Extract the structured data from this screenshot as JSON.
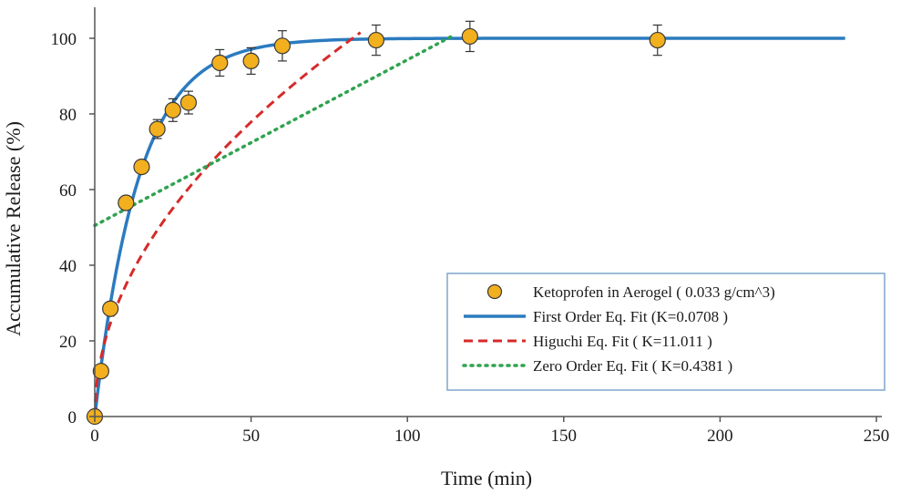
{
  "chart_data": {
    "type": "scatter",
    "xlabel": "Time (min)",
    "ylabel": "Accumulative Release (%)",
    "xlim": [
      0,
      250
    ],
    "ylim": [
      0,
      110
    ],
    "xticks": [
      0,
      50,
      100,
      150,
      200,
      250
    ],
    "yticks": [
      0,
      20,
      40,
      60,
      80,
      100
    ],
    "grid": false,
    "legend_position": "bottom-right",
    "series": [
      {
        "name": "Ketoprofen in Aerogel ( 0.033 g/cm^3)",
        "kind": "points-with-error-bars",
        "color": "#f2b01e",
        "x": [
          0,
          2,
          5,
          10,
          15,
          20,
          25,
          30,
          40,
          50,
          60,
          90,
          120,
          180
        ],
        "y": [
          0,
          12,
          28.5,
          56.5,
          66,
          76,
          81,
          83,
          93.5,
          94,
          98,
          99.5,
          100.5,
          99.5
        ],
        "error": [
          0,
          0,
          0,
          0,
          0,
          2.5,
          3,
          3,
          3.5,
          3.5,
          4,
          4,
          4,
          4
        ]
      },
      {
        "name": "First Order Eq. Fit (K=0.0708 )",
        "kind": "solid-line",
        "color": "#2b7bbf",
        "model": "first-order",
        "k": 0.0708,
        "x_range": [
          0,
          240
        ]
      },
      {
        "name": "Higuchi Eq. Fit ( K=11.011 )",
        "kind": "dashed-line",
        "color": "#d62a2a",
        "model": "higuchi",
        "k": 11.011,
        "x_range": [
          0,
          85
        ]
      },
      {
        "name": "Zero Order Eq. Fit ( K=0.4381 )",
        "kind": "dotted-line",
        "color": "#2fa34f",
        "model": "zero-order",
        "k": 0.4381,
        "intercept": 50.5,
        "x_range": [
          0,
          115
        ]
      }
    ]
  }
}
